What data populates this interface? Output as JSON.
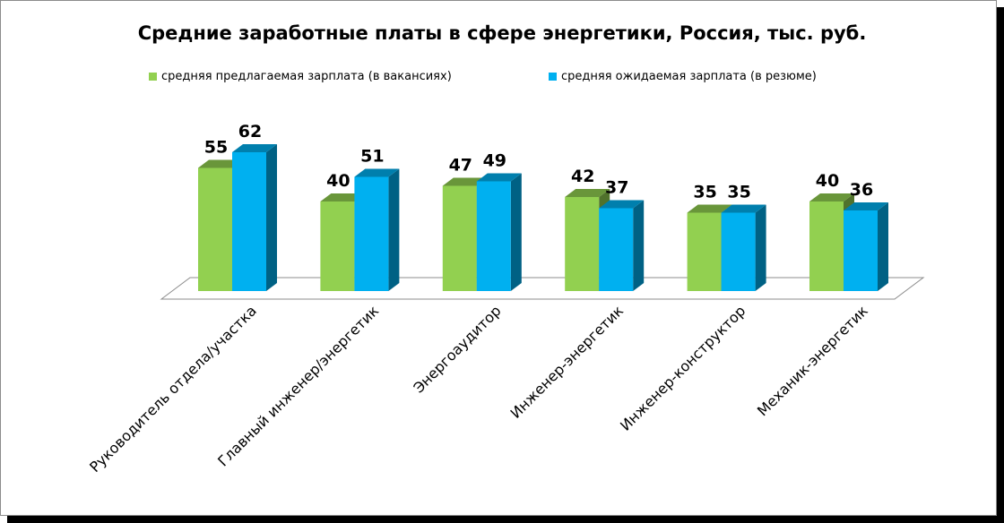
{
  "chart_data": {
    "type": "bar",
    "title": "Средние заработные платы в сфере энергетики, Россия, тыс. руб.",
    "categories": [
      "Руководитель отдела/участка",
      "Главный инженер/энергетик",
      "Энергоаудитор",
      "Инженер-энергетик",
      "Инженер-конструктор",
      "Механик-энергетик"
    ],
    "series": [
      {
        "name": "средняя предлагаемая зарплата (в вакансиях)",
        "values": [
          55,
          40,
          47,
          42,
          35,
          40
        ],
        "color": "#92d050"
      },
      {
        "name": "средняя ожидаемая зарплата (в резюме)",
        "values": [
          62,
          51,
          49,
          37,
          35,
          36
        ],
        "color": "#00b0f0"
      }
    ],
    "ylim": [
      0,
      62
    ],
    "grid": false,
    "legend_position": "top",
    "style": "3d-column"
  }
}
